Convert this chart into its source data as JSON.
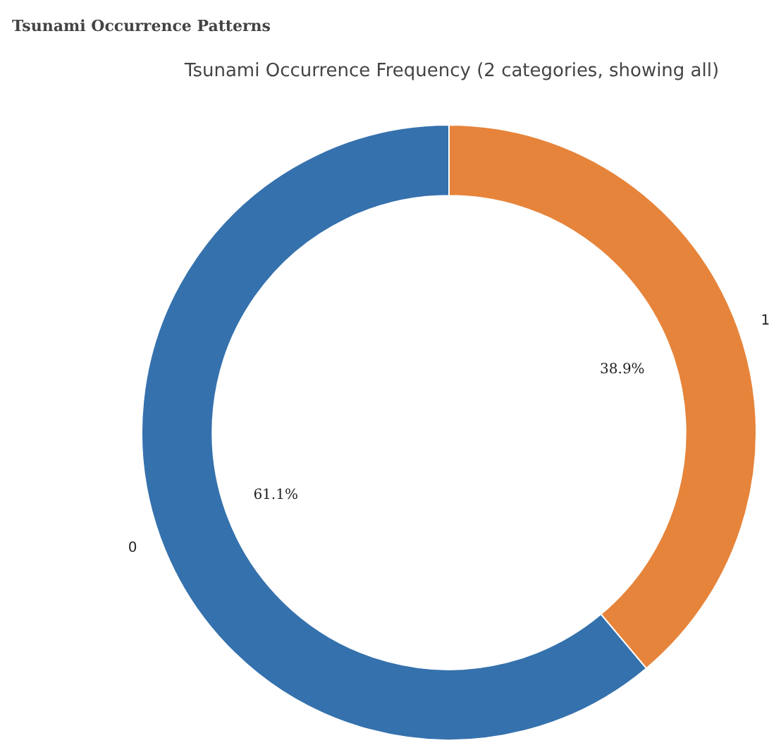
{
  "chart_data": {
    "type": "donut",
    "title": "Tsunami Occurrence Patterns",
    "subtitle": "Tsunami Occurrence Frequency (2 categories, showing all)",
    "categories": [
      "0",
      "1"
    ],
    "values": [
      61.1,
      38.9
    ],
    "colors": [
      "#3571ad",
      "#e6843b"
    ],
    "value_labels": [
      "61.1%",
      "38.9%"
    ]
  }
}
